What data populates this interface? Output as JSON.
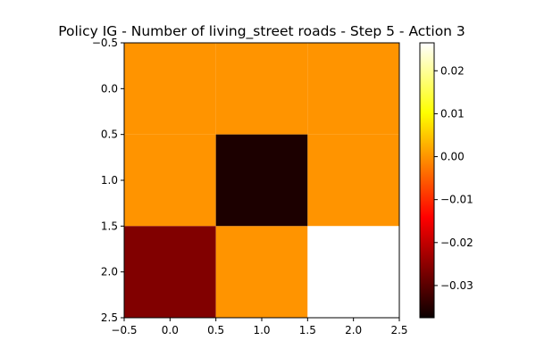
{
  "chart_data": {
    "type": "heatmap",
    "title": "Policy IG - Number of living_street roads - Step 5 - Action 3",
    "xlabel": "",
    "ylabel": "",
    "x_ticks": [
      "−0.5",
      "0.0",
      "0.5",
      "1.0",
      "1.5",
      "2.0",
      "2.5"
    ],
    "y_ticks": [
      "−0.5",
      "0.0",
      "0.5",
      "1.0",
      "1.5",
      "2.0",
      "2.5"
    ],
    "xlim": [
      -0.5,
      2.5
    ],
    "ylim": [
      2.5,
      -0.5
    ],
    "grid": false,
    "colormap": "hot",
    "values": [
      [
        0.0,
        0.0,
        0.0
      ],
      [
        0.0,
        -0.0375,
        0.0
      ],
      [
        -0.028,
        0.0,
        0.0265
      ]
    ],
    "colorbar": {
      "min": -0.0375,
      "max": 0.0265,
      "ticks": [
        -0.03,
        -0.02,
        -0.01,
        0.0,
        0.01,
        0.02
      ],
      "tick_labels": [
        "−0.03",
        "−0.02",
        "−0.01",
        "0.00",
        "0.01",
        "0.02"
      ]
    }
  }
}
